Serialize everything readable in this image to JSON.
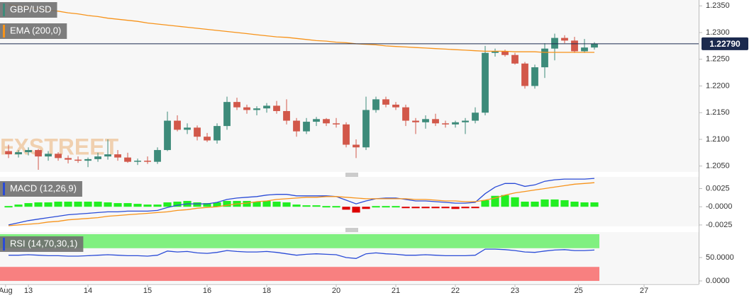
{
  "chart_data": [
    {
      "type": "candlestick",
      "title": "GBP/USD",
      "watermark": "FXSTREET",
      "open": [
        1.2078,
        1.2072,
        1.2076,
        1.208,
        1.2068,
        1.2073,
        1.2065,
        1.2062,
        1.206,
        1.2063,
        1.2068,
        1.2072,
        1.2066,
        1.2058,
        1.206,
        1.2058,
        1.208,
        1.2135,
        1.2118,
        1.2122,
        1.2105,
        1.2098,
        1.2125,
        1.217,
        1.216,
        1.2155,
        1.2158,
        1.2163,
        1.2153,
        1.2135,
        1.2115,
        1.2133,
        1.2138,
        1.213,
        1.2128,
        1.209,
        1.2085,
        1.2155,
        1.2175,
        1.2165,
        1.216,
        1.2135,
        1.2132,
        1.2138,
        1.213,
        1.2128,
        1.2132,
        1.2135,
        1.215,
        1.2262,
        1.2265,
        1.2258,
        1.2242,
        1.22,
        1.2235,
        1.227,
        1.229,
        1.2285,
        1.2265,
        1.2272
      ],
      "high": [
        1.209,
        1.208,
        1.2085,
        1.2082,
        1.2078,
        1.2076,
        1.207,
        1.2068,
        1.2066,
        1.2075,
        1.21,
        1.208,
        1.2075,
        1.2064,
        1.2068,
        1.2085,
        1.2152,
        1.2145,
        1.213,
        1.2126,
        1.2112,
        1.213,
        1.218,
        1.2178,
        1.2165,
        1.2162,
        1.2168,
        1.2172,
        1.2175,
        1.214,
        1.214,
        1.2142,
        1.214,
        1.214,
        1.2132,
        1.21,
        1.218,
        1.218,
        1.218,
        1.217,
        1.2165,
        1.214,
        1.2145,
        1.2148,
        1.2135,
        1.2135,
        1.214,
        1.216,
        1.2275,
        1.227,
        1.2268,
        1.2262,
        1.2245,
        1.224,
        1.228,
        1.2298,
        1.2295,
        1.2292,
        1.2288,
        1.2282
      ],
      "low": [
        1.2065,
        1.2066,
        1.207,
        1.2043,
        1.206,
        1.206,
        1.2055,
        1.2056,
        1.2048,
        1.2058,
        1.2062,
        1.206,
        1.2056,
        1.2052,
        1.2054,
        1.2054,
        1.2078,
        1.2115,
        1.211,
        1.2098,
        1.2095,
        1.2092,
        1.2118,
        1.2155,
        1.2148,
        1.2145,
        1.215,
        1.2148,
        1.2128,
        1.2105,
        1.211,
        1.2125,
        1.2125,
        1.2122,
        1.2085,
        1.2065,
        1.208,
        1.215,
        1.216,
        1.2155,
        1.2125,
        1.211,
        1.212,
        1.2125,
        1.2122,
        1.2122,
        1.211,
        1.213,
        1.2145,
        1.2255,
        1.2255,
        1.224,
        1.2195,
        1.2195,
        1.2215,
        1.2248,
        1.228,
        1.2262,
        1.2262,
        1.2268
      ],
      "close": [
        1.2072,
        1.2076,
        1.208,
        1.2068,
        1.2073,
        1.2065,
        1.2062,
        1.206,
        1.2063,
        1.2068,
        1.2072,
        1.2066,
        1.2058,
        1.206,
        1.2058,
        1.208,
        1.2135,
        1.2118,
        1.2122,
        1.2105,
        1.2098,
        1.2125,
        1.217,
        1.216,
        1.2155,
        1.2158,
        1.2163,
        1.2153,
        1.2135,
        1.2115,
        1.2133,
        1.2138,
        1.213,
        1.2128,
        1.209,
        1.2085,
        1.2155,
        1.2175,
        1.2165,
        1.216,
        1.2135,
        1.2132,
        1.2138,
        1.213,
        1.2128,
        1.2132,
        1.2135,
        1.215,
        1.2262,
        1.2265,
        1.2258,
        1.2242,
        1.22,
        1.2235,
        1.227,
        1.229,
        1.2285,
        1.2265,
        1.2272,
        1.2279
      ],
      "up_color": "#3d8b7a",
      "down_color": "#d2584a",
      "series": [
        {
          "name": "EMA (200,0)",
          "color": "#f7931a",
          "values": [
            1.2352,
            1.235,
            1.2347,
            1.2345,
            1.2342,
            1.234,
            1.2337,
            1.2335,
            1.2332,
            1.233,
            1.2327,
            1.2325,
            1.2323,
            1.2321,
            1.2318,
            1.2316,
            1.2314,
            1.2312,
            1.231,
            1.2308,
            1.2306,
            1.2304,
            1.2302,
            1.23,
            1.2298,
            1.2296,
            1.2294,
            1.2292,
            1.2291,
            1.2289,
            1.2287,
            1.2285,
            1.2284,
            1.2282,
            1.2281,
            1.2279,
            1.2278,
            1.2277,
            1.2275,
            1.2274,
            1.2273,
            1.2272,
            1.2271,
            1.227,
            1.2269,
            1.2268,
            1.2267,
            1.2266,
            1.2265,
            1.2265,
            1.2265,
            1.2264,
            1.2264,
            1.2264,
            1.2263,
            1.2263,
            1.2263,
            1.2263,
            1.2263,
            1.2263
          ]
        }
      ],
      "last_price": {
        "value": 1.2279,
        "label": "1.22790"
      },
      "last_price_color": "#1b2a4e",
      "xlim": [
        -0.86,
        69.5
      ],
      "ylim": [
        1.2039,
        1.2361
      ],
      "yticks": [
        {
          "value": 1.235,
          "label": "1.2350"
        },
        {
          "value": 1.23,
          "label": "1.2300"
        },
        {
          "value": 1.225,
          "label": "1.2250"
        },
        {
          "value": 1.22,
          "label": "1.2200"
        },
        {
          "value": 1.215,
          "label": "1.2150"
        },
        {
          "value": 1.21,
          "label": "1.2100"
        },
        {
          "value": 1.205,
          "label": "1.2050"
        }
      ],
      "grid": true
    },
    {
      "type": "macd",
      "title": "MACD (12,26,9)",
      "series": [
        {
          "color": "#2a4bd7",
          "values": [
            -0.0025,
            -0.0022,
            -0.0019,
            -0.0017,
            -0.0015,
            -0.0013,
            -0.0011,
            -0.001,
            -0.0009,
            -0.0008,
            -0.0007,
            -0.0007,
            -0.0006,
            -0.0006,
            -0.0006,
            -0.0005,
            -0.0001,
            0.0002,
            0.0004,
            0.0004,
            0.0004,
            0.0006,
            0.001,
            0.0012,
            0.0013,
            0.0014,
            0.0016,
            0.0017,
            0.0017,
            0.0015,
            0.0015,
            0.0015,
            0.0015,
            0.0014,
            0.0009,
            0.0004,
            0.0008,
            0.0011,
            0.0012,
            0.0012,
            0.001,
            0.0008,
            0.0008,
            0.0007,
            0.0006,
            0.0005,
            0.0005,
            0.0006,
            0.0018,
            0.0027,
            0.0032,
            0.0032,
            0.0028,
            0.003,
            0.0035,
            0.0037,
            0.0038,
            0.0038,
            0.0038,
            0.0039
          ]
        },
        {
          "color": "#f7931a",
          "values": [
            -0.0026,
            -0.0025,
            -0.0024,
            -0.0023,
            -0.0021,
            -0.002,
            -0.0018,
            -0.0017,
            -0.0016,
            -0.0015,
            -0.0013,
            -0.0012,
            -0.0011,
            -0.001,
            -0.0009,
            -0.0008,
            -0.0007,
            -0.0005,
            -0.0004,
            -0.0002,
            -0.0001,
            0.0,
            0.0002,
            0.0004,
            0.0005,
            0.0007,
            0.0008,
            0.001,
            0.0011,
            0.0012,
            0.0013,
            0.0013,
            0.0014,
            0.0014,
            0.0013,
            0.0012,
            0.0011,
            0.0011,
            0.0011,
            0.0011,
            0.0011,
            0.001,
            0.001,
            0.0009,
            0.0008,
            0.0008,
            0.0007,
            0.0007,
            0.0009,
            0.0012,
            0.0016,
            0.0019,
            0.0021,
            0.0023,
            0.0025,
            0.0027,
            0.0029,
            0.0031,
            0.0032,
            0.0033
          ]
        }
      ],
      "histogram": {
        "up_color": "#22ee22",
        "down_color": "#dd0000",
        "values": [
          0.0001,
          0.0003,
          0.0005,
          0.0006,
          0.0006,
          0.0007,
          0.0007,
          0.0007,
          0.0007,
          0.0007,
          0.0006,
          0.0005,
          0.0005,
          0.0004,
          0.0003,
          0.0003,
          0.0006,
          0.0007,
          0.0008,
          0.0006,
          0.0005,
          0.0006,
          0.0008,
          0.0008,
          0.0008,
          0.0007,
          0.0008,
          0.0007,
          0.0006,
          0.0003,
          0.0002,
          0.0002,
          0.0001,
          0.0,
          -0.0004,
          -0.0008,
          -0.0003,
          0.0,
          0.0001,
          0.0001,
          -0.0001,
          -0.0002,
          -0.0002,
          -0.0002,
          -0.0002,
          -0.0003,
          -0.0002,
          -0.0001,
          0.0009,
          0.0015,
          0.0016,
          0.0013,
          0.0007,
          0.0007,
          0.001,
          0.001,
          0.0009,
          0.0007,
          0.0006,
          0.0006
        ]
      },
      "xlim": [
        -0.86,
        69.5
      ],
      "ylim": [
        -0.0027,
        0.0041
      ],
      "yticks": [
        {
          "value": 0.0025,
          "label": "0.0025"
        },
        {
          "value": 0,
          "label": "-0.0000"
        },
        {
          "value": -0.0025,
          "label": "-0.0025"
        }
      ],
      "grid": true
    },
    {
      "type": "rsi",
      "title": "RSI (14,70,30,1)",
      "series": [
        {
          "color": "#2a4bd7",
          "values": [
            55,
            55,
            56,
            55,
            54,
            54,
            53,
            53,
            54,
            55,
            56,
            55,
            54,
            54,
            53,
            55,
            64,
            62,
            63,
            60,
            59,
            61,
            65,
            63,
            62,
            62,
            63,
            61,
            58,
            55,
            57,
            58,
            57,
            56,
            50,
            48,
            58,
            60,
            58,
            57,
            55,
            55,
            56,
            55,
            54,
            54,
            54,
            55,
            68,
            68,
            67,
            65,
            62,
            61,
            64,
            66,
            67,
            65,
            65,
            66
          ]
        }
      ],
      "bands": [
        {
          "range": [
            70,
            100
          ],
          "color": "#80f080"
        },
        {
          "range": [
            0,
            30
          ],
          "color": "#f88080"
        }
      ],
      "xlim": [
        -0.86,
        69.5
      ],
      "ylim": [
        -4.5,
        104.5
      ],
      "yticks": [
        {
          "value": 50,
          "label": "50.0000"
        },
        {
          "value": 0,
          "label": "0.0000"
        }
      ],
      "xticks": [
        {
          "value": -0.3,
          "label": "Aug"
        },
        {
          "value": 2,
          "label": "13"
        },
        {
          "value": 8,
          "label": "14"
        },
        {
          "value": 14,
          "label": "15"
        },
        {
          "value": 20,
          "label": "16"
        },
        {
          "value": 26,
          "label": "18"
        },
        {
          "value": 33,
          "label": "20"
        },
        {
          "value": 39,
          "label": "21"
        },
        {
          "value": 45,
          "label": "22"
        },
        {
          "value": 51,
          "label": "23"
        },
        {
          "value": 57.4,
          "label": "25"
        },
        {
          "value": 64,
          "label": "27"
        }
      ],
      "grid": true
    }
  ]
}
